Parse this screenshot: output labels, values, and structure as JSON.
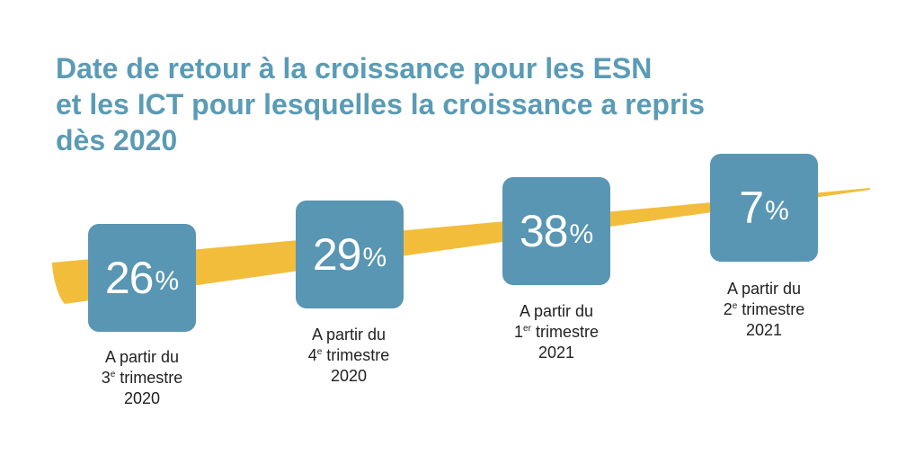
{
  "title": {
    "lines": [
      "Date de retour à la croissance pour les ESN",
      "et les ICT pour lesquelles la croissance a repris",
      "dès 2020"
    ]
  },
  "colors": {
    "title": "#5a9bb5",
    "tile": "#5896b3",
    "ribbon": "#f2bd3b",
    "caption": "#222222"
  },
  "chart_data": {
    "type": "table",
    "title": "Date de retour à la croissance pour les ESN et les ICT pour lesquelles la croissance a repris dès 2020",
    "unit": "%",
    "categories": [
      "A partir du 3e trimestre 2020",
      "A partir du 4e trimestre 2020",
      "A partir du 1er trimestre 2021",
      "A partir du 2e trimestre 2021"
    ],
    "values": [
      26,
      29,
      38,
      7
    ],
    "items": [
      {
        "value": "26",
        "pct": "%",
        "line1": "A partir du",
        "ord": "3",
        "sup": "e",
        "line2rest": " trimestre",
        "year": "2020"
      },
      {
        "value": "29",
        "pct": "%",
        "line1": "A partir du",
        "ord": "4",
        "sup": "e",
        "line2rest": " trimestre",
        "year": "2020"
      },
      {
        "value": "38",
        "pct": "%",
        "line1": "A partir du",
        "ord": "1",
        "sup": "er",
        "line2rest": " trimestre",
        "year": "2021"
      },
      {
        "value": "7",
        "pct": "%",
        "line1": "A partir du",
        "ord": "2",
        "sup": "e",
        "line2rest": " trimestre",
        "year": "2021"
      }
    ]
  }
}
